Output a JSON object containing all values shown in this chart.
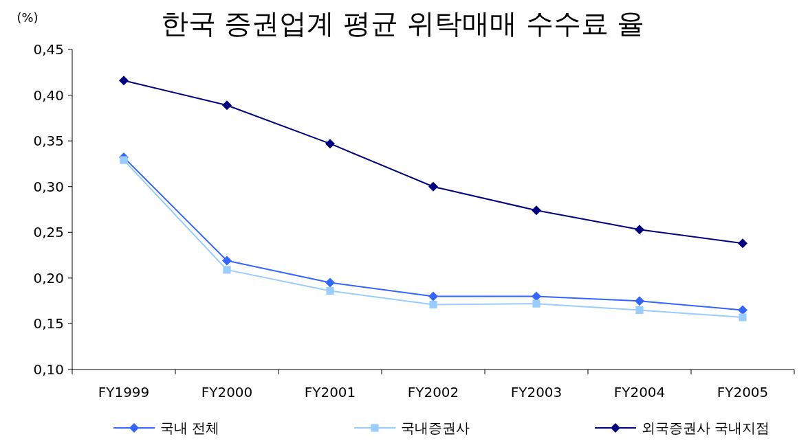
{
  "chart_data": {
    "type": "line",
    "title": "한국 증권업계 평균 위탁매매 수수료 율",
    "ylabel": "(%)",
    "categories": [
      "FY1999",
      "FY2000",
      "FY2001",
      "FY2002",
      "FY2003",
      "FY2004",
      "FY2005"
    ],
    "series": [
      {
        "name": "국내 전체",
        "color": "#3366ff",
        "marker": "diamond",
        "values": [
          0.332,
          0.219,
          0.195,
          0.18,
          0.18,
          0.175,
          0.165
        ]
      },
      {
        "name": "국내증권사",
        "color": "#99ccff",
        "marker": "square",
        "values": [
          0.329,
          0.209,
          0.186,
          0.171,
          0.172,
          0.165,
          0.157
        ]
      },
      {
        "name": "외국증권사 국내지점",
        "color": "#000080",
        "marker": "diamond",
        "values": [
          0.416,
          0.389,
          0.347,
          0.3,
          0.274,
          0.253,
          0.238
        ]
      }
    ],
    "ylim": [
      0.1,
      0.45
    ],
    "yticks": [
      {
        "value": 0.1,
        "label": "0,10"
      },
      {
        "value": 0.15,
        "label": "0,15"
      },
      {
        "value": 0.2,
        "label": "0,20"
      },
      {
        "value": 0.25,
        "label": "0,25"
      },
      {
        "value": 0.3,
        "label": "0,30"
      },
      {
        "value": 0.35,
        "label": "0,35"
      },
      {
        "value": 0.4,
        "label": "0,40"
      },
      {
        "value": 0.45,
        "label": "0,45"
      }
    ],
    "grid": false,
    "legend": "bottom",
    "line_style": "solid"
  }
}
